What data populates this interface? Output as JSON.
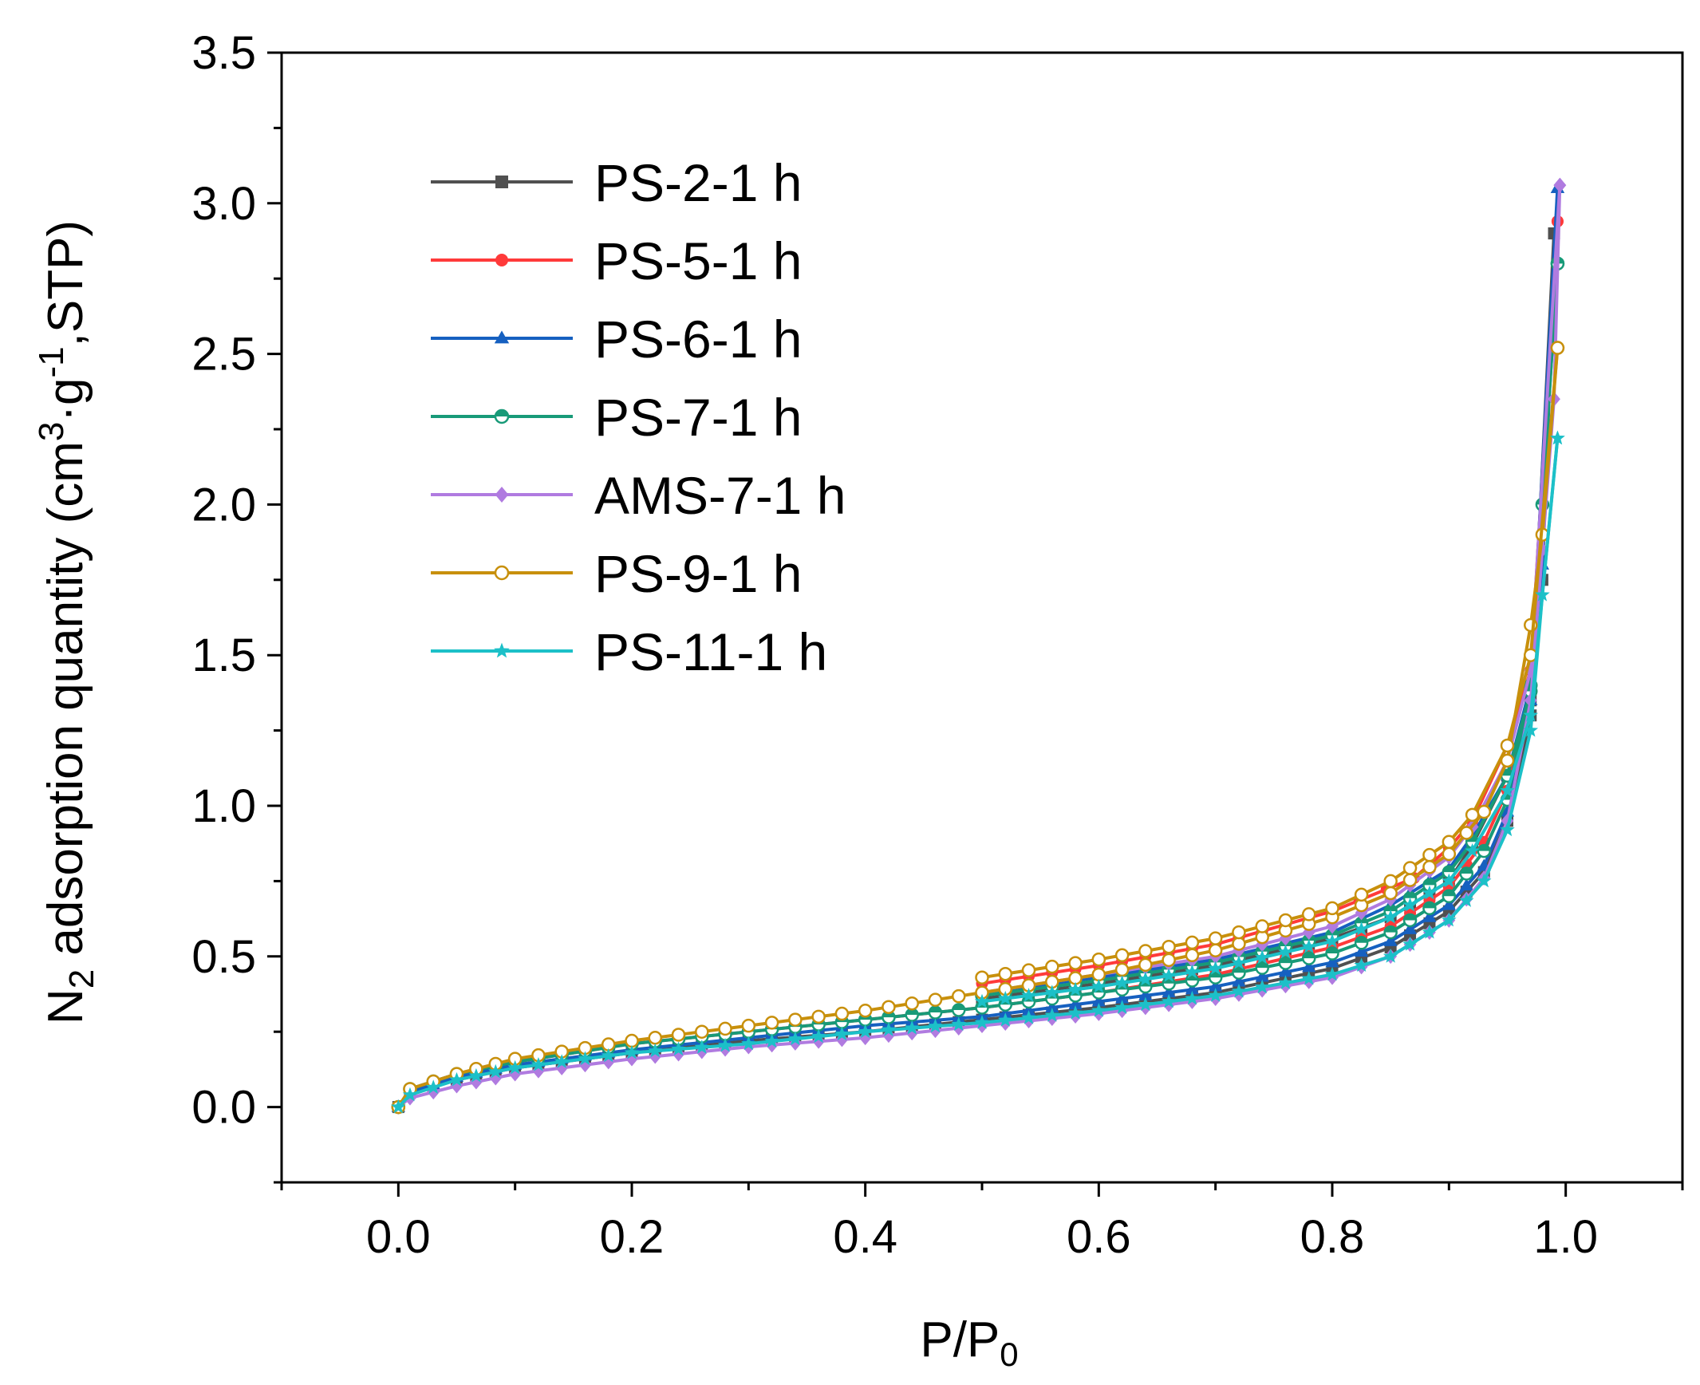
{
  "chart_data": {
    "type": "line",
    "xlabel_main": "P/P",
    "xlabel_sub": "0",
    "ylabel_parts": {
      "n": "N",
      "n_sub": "2",
      "text_a": " adsorption quantity (cm",
      "sup_3": "3",
      "text_b": "·g",
      "sup_neg1": "-1",
      "text_c": ",STP)"
    },
    "xlim": [
      -0.1,
      1.1
    ],
    "ylim": [
      -0.25,
      3.5
    ],
    "xticks": [
      {
        "value": 0.0,
        "label": "0.0"
      },
      {
        "value": 0.2,
        "label": "0.2"
      },
      {
        "value": 0.4,
        "label": "0.4"
      },
      {
        "value": 0.6,
        "label": "0.6"
      },
      {
        "value": 0.8,
        "label": "0.8"
      },
      {
        "value": 1.0,
        "label": "1.0"
      }
    ],
    "yticks": [
      {
        "value": 0.0,
        "label": "0.0"
      },
      {
        "value": 0.5,
        "label": "0.5"
      },
      {
        "value": 1.0,
        "label": "1.0"
      },
      {
        "value": 1.5,
        "label": "1.5"
      },
      {
        "value": 2.0,
        "label": "2.0"
      },
      {
        "value": 2.5,
        "label": "2.5"
      },
      {
        "value": 3.0,
        "label": "3.0"
      },
      {
        "value": 3.5,
        "label": "3.5"
      }
    ],
    "legend_position": "top-left",
    "series": [
      {
        "name": "PS-2-1 h",
        "color": "#505050",
        "marker": "square",
        "adsorption": [
          [
            0,
            0
          ],
          [
            0.01,
            0.05
          ],
          [
            0.05,
            0.09
          ],
          [
            0.1,
            0.13
          ],
          [
            0.2,
            0.18
          ],
          [
            0.3,
            0.22
          ],
          [
            0.4,
            0.25
          ],
          [
            0.5,
            0.29
          ],
          [
            0.6,
            0.33
          ],
          [
            0.7,
            0.38
          ],
          [
            0.8,
            0.46
          ],
          [
            0.85,
            0.53
          ],
          [
            0.9,
            0.65
          ],
          [
            0.93,
            0.78
          ],
          [
            0.95,
            0.95
          ],
          [
            0.97,
            1.3
          ],
          [
            0.98,
            1.75
          ],
          [
            0.99,
            2.9
          ]
        ],
        "desorption": [
          [
            0.99,
            2.9
          ],
          [
            0.97,
            1.35
          ],
          [
            0.95,
            1.1
          ],
          [
            0.92,
            0.87
          ],
          [
            0.9,
            0.75
          ],
          [
            0.85,
            0.63
          ],
          [
            0.8,
            0.56
          ],
          [
            0.7,
            0.47
          ],
          [
            0.6,
            0.41
          ],
          [
            0.5,
            0.36
          ]
        ]
      },
      {
        "name": "PS-5-1 h",
        "color": "#ff3a3a",
        "marker": "circle",
        "adsorption": [
          [
            0,
            0
          ],
          [
            0.01,
            0.06
          ],
          [
            0.05,
            0.11
          ],
          [
            0.1,
            0.15
          ],
          [
            0.2,
            0.21
          ],
          [
            0.3,
            0.25
          ],
          [
            0.4,
            0.29
          ],
          [
            0.5,
            0.33
          ],
          [
            0.6,
            0.38
          ],
          [
            0.7,
            0.44
          ],
          [
            0.8,
            0.53
          ],
          [
            0.85,
            0.6
          ],
          [
            0.9,
            0.73
          ],
          [
            0.93,
            0.88
          ],
          [
            0.95,
            1.05
          ],
          [
            0.97,
            1.4
          ],
          [
            0.98,
            1.9
          ],
          [
            0.993,
            2.94
          ]
        ],
        "desorption": [
          [
            0.993,
            2.94
          ],
          [
            0.97,
            1.45
          ],
          [
            0.95,
            1.2
          ],
          [
            0.92,
            0.95
          ],
          [
            0.9,
            0.86
          ],
          [
            0.87,
            0.76
          ],
          [
            0.8,
            0.65
          ],
          [
            0.7,
            0.54
          ],
          [
            0.6,
            0.47
          ],
          [
            0.5,
            0.41
          ]
        ]
      },
      {
        "name": "PS-6-1 h",
        "color": "#1660c0",
        "marker": "triangle",
        "adsorption": [
          [
            0,
            0
          ],
          [
            0.01,
            0.05
          ],
          [
            0.05,
            0.1
          ],
          [
            0.1,
            0.14
          ],
          [
            0.2,
            0.19
          ],
          [
            0.3,
            0.23
          ],
          [
            0.4,
            0.27
          ],
          [
            0.5,
            0.3
          ],
          [
            0.6,
            0.35
          ],
          [
            0.7,
            0.4
          ],
          [
            0.8,
            0.48
          ],
          [
            0.85,
            0.55
          ],
          [
            0.9,
            0.67
          ],
          [
            0.93,
            0.8
          ],
          [
            0.95,
            0.98
          ],
          [
            0.97,
            1.35
          ],
          [
            0.98,
            1.8
          ],
          [
            0.993,
            3.05
          ]
        ],
        "desorption": [
          [
            0.993,
            3.05
          ],
          [
            0.97,
            1.4
          ],
          [
            0.95,
            1.1
          ],
          [
            0.92,
            0.9
          ],
          [
            0.9,
            0.79
          ],
          [
            0.85,
            0.67
          ],
          [
            0.8,
            0.58
          ],
          [
            0.7,
            0.49
          ],
          [
            0.6,
            0.43
          ],
          [
            0.5,
            0.38
          ]
        ]
      },
      {
        "name": "PS-7-1 h",
        "color": "#189a78",
        "marker": "half-circle",
        "adsorption": [
          [
            0,
            0
          ],
          [
            0.01,
            0.06
          ],
          [
            0.05,
            0.11
          ],
          [
            0.1,
            0.15
          ],
          [
            0.2,
            0.21
          ],
          [
            0.3,
            0.25
          ],
          [
            0.4,
            0.29
          ],
          [
            0.5,
            0.33
          ],
          [
            0.6,
            0.38
          ],
          [
            0.7,
            0.43
          ],
          [
            0.8,
            0.51
          ],
          [
            0.85,
            0.58
          ],
          [
            0.9,
            0.7
          ],
          [
            0.93,
            0.85
          ],
          [
            0.95,
            1.02
          ],
          [
            0.97,
            1.4
          ],
          [
            0.98,
            2.0
          ],
          [
            0.993,
            2.8
          ]
        ],
        "desorption": [
          [
            0.993,
            2.8
          ],
          [
            0.97,
            1.38
          ],
          [
            0.95,
            1.1
          ],
          [
            0.92,
            0.88
          ],
          [
            0.9,
            0.78
          ],
          [
            0.85,
            0.65
          ],
          [
            0.8,
            0.57
          ],
          [
            0.7,
            0.48
          ],
          [
            0.6,
            0.42
          ],
          [
            0.5,
            0.37
          ]
        ]
      },
      {
        "name": "AMS-7-1 h",
        "color": "#b07be0",
        "marker": "diamond",
        "adsorption": [
          [
            0,
            0
          ],
          [
            0.01,
            0.03
          ],
          [
            0.05,
            0.07
          ],
          [
            0.1,
            0.11
          ],
          [
            0.2,
            0.16
          ],
          [
            0.3,
            0.2
          ],
          [
            0.4,
            0.23
          ],
          [
            0.5,
            0.27
          ],
          [
            0.6,
            0.31
          ],
          [
            0.7,
            0.36
          ],
          [
            0.8,
            0.43
          ],
          [
            0.85,
            0.5
          ],
          [
            0.9,
            0.62
          ],
          [
            0.93,
            0.76
          ],
          [
            0.95,
            0.95
          ],
          [
            0.97,
            1.35
          ],
          [
            0.98,
            1.85
          ],
          [
            0.99,
            2.35
          ],
          [
            0.995,
            3.06
          ]
        ],
        "desorption": [
          [
            0.995,
            3.06
          ],
          [
            0.97,
            1.45
          ],
          [
            0.95,
            1.15
          ],
          [
            0.92,
            0.93
          ],
          [
            0.9,
            0.83
          ],
          [
            0.85,
            0.69
          ],
          [
            0.8,
            0.6
          ],
          [
            0.7,
            0.5
          ],
          [
            0.6,
            0.44
          ],
          [
            0.5,
            0.38
          ]
        ]
      },
      {
        "name": "PS-9-1 h",
        "color": "#c8900c",
        "marker": "open-circle",
        "adsorption": [
          [
            0,
            0
          ],
          [
            0.01,
            0.06
          ],
          [
            0.05,
            0.11
          ],
          [
            0.1,
            0.16
          ],
          [
            0.2,
            0.22
          ],
          [
            0.3,
            0.27
          ],
          [
            0.4,
            0.32
          ],
          [
            0.5,
            0.38
          ],
          [
            0.6,
            0.44
          ],
          [
            0.7,
            0.52
          ],
          [
            0.8,
            0.63
          ],
          [
            0.85,
            0.71
          ],
          [
            0.9,
            0.84
          ],
          [
            0.93,
            0.98
          ],
          [
            0.95,
            1.15
          ],
          [
            0.97,
            1.6
          ],
          [
            0.98,
            1.9
          ],
          [
            0.993,
            2.52
          ]
        ],
        "desorption": [
          [
            0.993,
            2.52
          ],
          [
            0.97,
            1.5
          ],
          [
            0.95,
            1.2
          ],
          [
            0.92,
            0.97
          ],
          [
            0.9,
            0.88
          ],
          [
            0.85,
            0.75
          ],
          [
            0.8,
            0.66
          ],
          [
            0.7,
            0.56
          ],
          [
            0.6,
            0.49
          ],
          [
            0.5,
            0.43
          ]
        ]
      },
      {
        "name": "PS-11-1 h",
        "color": "#1cc0c8",
        "marker": "star",
        "adsorption": [
          [
            0,
            0
          ],
          [
            0.01,
            0.04
          ],
          [
            0.05,
            0.09
          ],
          [
            0.1,
            0.13
          ],
          [
            0.2,
            0.18
          ],
          [
            0.3,
            0.21
          ],
          [
            0.4,
            0.25
          ],
          [
            0.5,
            0.28
          ],
          [
            0.6,
            0.32
          ],
          [
            0.7,
            0.37
          ],
          [
            0.8,
            0.44
          ],
          [
            0.85,
            0.5
          ],
          [
            0.9,
            0.62
          ],
          [
            0.93,
            0.75
          ],
          [
            0.95,
            0.92
          ],
          [
            0.97,
            1.25
          ],
          [
            0.98,
            1.7
          ],
          [
            0.993,
            2.22
          ]
        ],
        "desorption": [
          [
            0.993,
            2.22
          ],
          [
            0.97,
            1.3
          ],
          [
            0.95,
            1.05
          ],
          [
            0.92,
            0.85
          ],
          [
            0.9,
            0.75
          ],
          [
            0.85,
            0.63
          ],
          [
            0.8,
            0.55
          ],
          [
            0.7,
            0.46
          ],
          [
            0.6,
            0.4
          ],
          [
            0.5,
            0.35
          ]
        ]
      }
    ]
  }
}
